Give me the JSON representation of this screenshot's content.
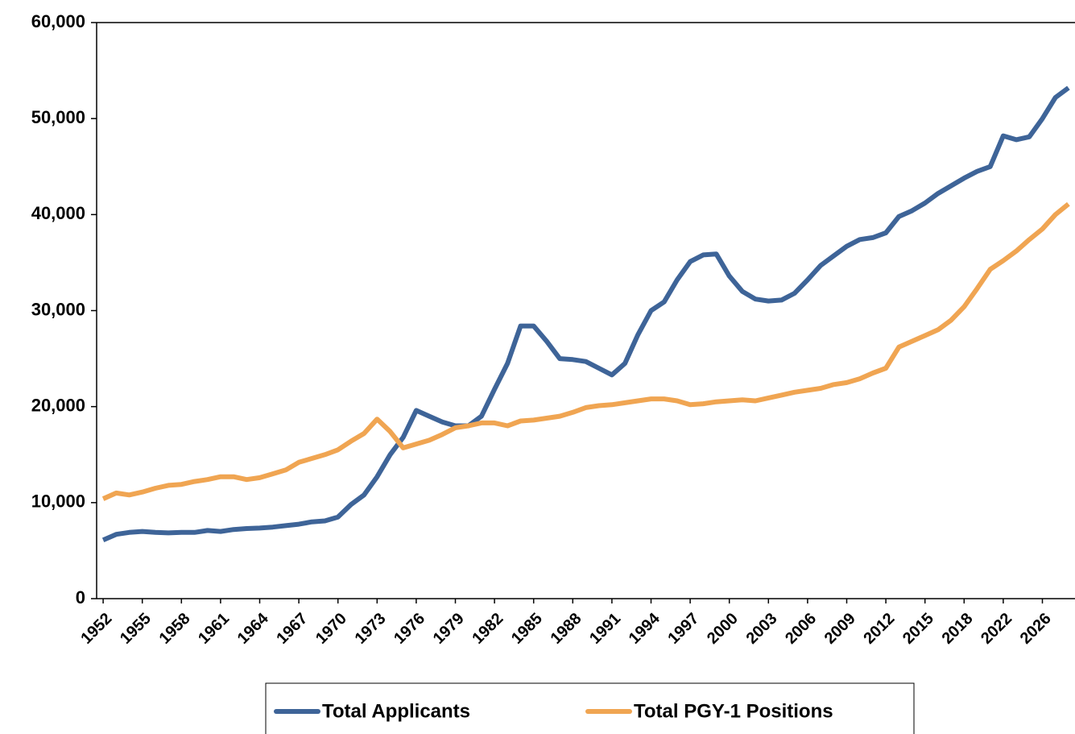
{
  "chart_data": {
    "type": "line",
    "categories": [
      1952,
      1953,
      1954,
      1955,
      1956,
      1957,
      1958,
      1959,
      1960,
      1961,
      1962,
      1963,
      1964,
      1965,
      1966,
      1967,
      1968,
      1969,
      1970,
      1971,
      1972,
      1973,
      1974,
      1975,
      1976,
      1977,
      1978,
      1979,
      1980,
      1981,
      1982,
      1983,
      1984,
      1985,
      1986,
      1987,
      1988,
      1989,
      1990,
      1991,
      1992,
      1993,
      1994,
      1995,
      1996,
      1997,
      1998,
      1999,
      2000,
      2001,
      2002,
      2003,
      2004,
      2005,
      2006,
      2007,
      2008,
      2009,
      2010,
      2011,
      2012,
      2013,
      2014,
      2015,
      2016,
      2017,
      2018,
      2019,
      2021,
      2022,
      2023,
      2024,
      2026,
      2027,
      2028
    ],
    "series": [
      {
        "name": "Total Applicants",
        "color": "#3e6498",
        "values": [
          6100,
          6700,
          6900,
          7000,
          6900,
          6850,
          6900,
          6900,
          7100,
          7000,
          7200,
          7300,
          7350,
          7450,
          7600,
          7750,
          8000,
          8100,
          8500,
          9800,
          10800,
          12700,
          15000,
          16800,
          19600,
          19000,
          18400,
          18000,
          18000,
          19000,
          21800,
          24500,
          28400,
          28400,
          26800,
          25000,
          24900,
          24700,
          24000,
          23300,
          24500,
          27500,
          30000,
          30900,
          33200,
          35100,
          35800,
          35900,
          33600,
          32000,
          31200,
          31000,
          31100,
          31800,
          33200,
          34700,
          35700,
          36700,
          37400,
          37600,
          38100,
          39800,
          40400,
          41200,
          42200,
          43000,
          43800,
          44500,
          45000,
          48200,
          47800,
          48100,
          50000,
          52200,
          53200
        ]
      },
      {
        "name": "Total PGY-1 Positions",
        "color": "#f0a552",
        "values": [
          10400,
          11000,
          10800,
          11100,
          11500,
          11800,
          11900,
          12200,
          12400,
          12700,
          12700,
          12400,
          12600,
          13000,
          13400,
          14200,
          14600,
          15000,
          15500,
          16400,
          17200,
          18700,
          17400,
          15700,
          16100,
          16500,
          17100,
          17800,
          18000,
          18300,
          18300,
          18000,
          18500,
          18600,
          18800,
          19000,
          19400,
          19900,
          20100,
          20200,
          20400,
          20600,
          20800,
          20800,
          20600,
          20200,
          20300,
          20500,
          20600,
          20700,
          20600,
          20900,
          21200,
          21500,
          21700,
          21900,
          22300,
          22500,
          22900,
          23500,
          24000,
          26200,
          26800,
          27400,
          28000,
          29000,
          30400,
          32300,
          34300,
          35200,
          36200,
          37400,
          38500,
          40000,
          41100
        ]
      }
    ],
    "ylim": [
      0,
      60000
    ],
    "yticks": [
      0,
      {
        "value": 10000,
        "label": "10,000"
      },
      {
        "value": 20000,
        "label": "20,000"
      },
      {
        "value": 30000,
        "label": "30,000"
      },
      {
        "value": 40000,
        "label": "40,000"
      },
      {
        "value": 50000,
        "label": "50,000"
      },
      {
        "value": 60000,
        "label": "60,000"
      }
    ],
    "legend": "bottom"
  }
}
